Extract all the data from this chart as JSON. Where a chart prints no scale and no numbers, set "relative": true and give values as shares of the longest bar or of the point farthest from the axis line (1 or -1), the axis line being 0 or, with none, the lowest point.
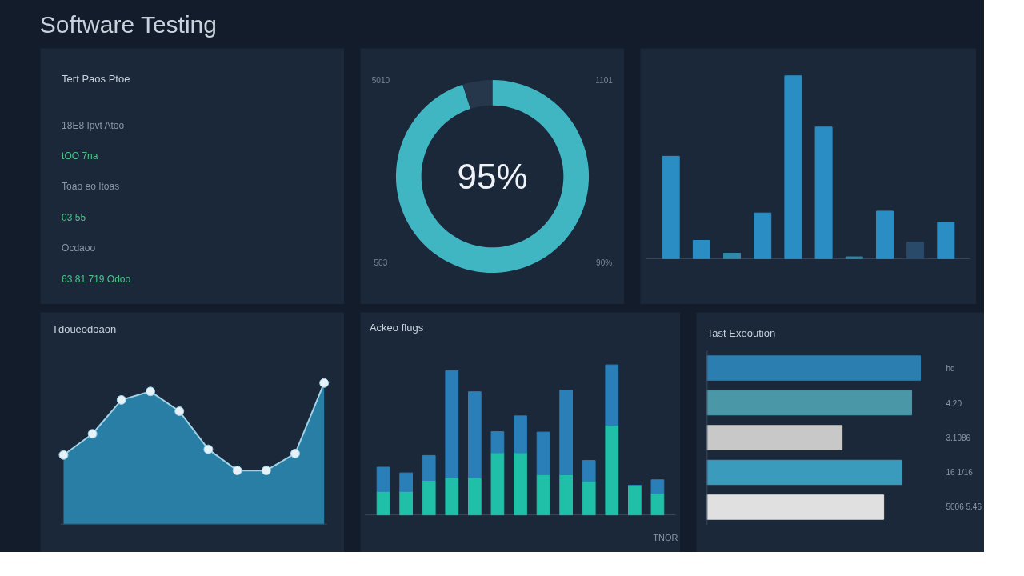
{
  "chart_data": [
    {
      "type": "other",
      "title": "Software Testing"
    },
    {
      "type": "other",
      "title": "Tert Paos Ptoe",
      "annotations": [
        "18E8 Ipvt Atoo",
        "tOO 7na",
        "Toao eo Itoas",
        "03 55",
        "Ocdaoo",
        "63 81 719 Odoo"
      ]
    },
    {
      "type": "donut",
      "categories": [
        null,
        null
      ],
      "values": [
        95,
        5
      ],
      "colors": [
        "#3fb6c2",
        "#26364b"
      ],
      "value_labels": [
        "95%",
        null
      ],
      "annotations": [
        "5010",
        "1101",
        "503",
        "90%"
      ]
    },
    {
      "type": "bar",
      "relative": true,
      "categories": [
        null,
        null,
        null,
        null,
        null,
        null,
        null,
        null,
        null,
        null
      ],
      "values": [
        0.56,
        0.1,
        0.03,
        0.25,
        1.0,
        0.72,
        0.01,
        0.26,
        0.09,
        0.2
      ],
      "colors": [
        "#2a8ec4",
        "#2a8ec4",
        "#2f8aa8",
        "#2a8ec4",
        "#2a8ec4",
        "#2a8ec4",
        "#2f8aa8",
        "#2a8ec4",
        "#2a4a6a",
        "#2a8ec4"
      ]
    },
    {
      "type": "area",
      "title": "Tdoueodoaon",
      "relative": true,
      "marker": "circle",
      "categories": [
        null,
        null,
        null,
        null,
        null,
        null,
        null,
        null,
        null,
        null
      ],
      "values": [
        0.49,
        0.64,
        0.88,
        0.94,
        0.8,
        0.53,
        0.38,
        0.38,
        0.5,
        1.0
      ],
      "color": "#2a8db8"
    },
    {
      "type": "bar",
      "title": "Ackeo flugs",
      "relative": true,
      "stacked": true,
      "categories": [
        null,
        null,
        null,
        null,
        null,
        null,
        null,
        null,
        null,
        null,
        null,
        null,
        null
      ],
      "annotations": [
        "TNOR"
      ],
      "series": [
        {
          "color": "#1fbfa8",
          "values": [
            0.157,
            0.157,
            0.23,
            0.246,
            0.246,
            0.414,
            0.414,
            0.268,
            0.268,
            0.224,
            0.597,
            0.197,
            0.145
          ]
        },
        {
          "color": "#2a7fb8",
          "values": [
            0.161,
            0.123,
            0.166,
            0.716,
            0.575,
            0.141,
            0.246,
            0.284,
            0.564,
            0.139,
            0.403,
            0.0,
            0.089
          ]
        }
      ]
    },
    {
      "type": "bar",
      "orientation": "horizontal",
      "title": "Tast Exeoution",
      "relative": true,
      "categories": [
        null,
        null,
        null,
        null,
        null
      ],
      "values": [
        1.0,
        0.959,
        0.633,
        0.914,
        0.828
      ],
      "colors": [
        "#2a7fb0",
        "#4a97a8",
        "#c8c8c8",
        "#3a9bbd",
        "#e0e0e0"
      ],
      "annotations": [
        "hd",
        "4.20",
        "3.1086",
        "16 1/16",
        "5006 5.46"
      ]
    }
  ]
}
